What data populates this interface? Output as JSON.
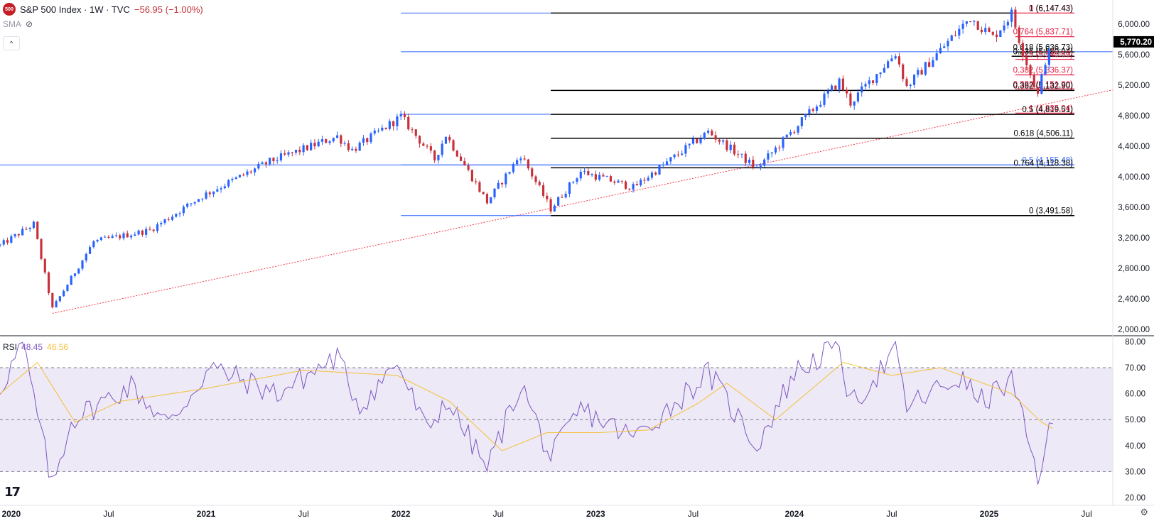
{
  "header": {
    "logo_text": "500",
    "title": "S&P 500 Index · 1W · TVC",
    "change": "−56.95 (−1.00%)",
    "indicator_label": "SMA",
    "collapse_glyph": "^"
  },
  "rsi_header": {
    "name": "RSI",
    "value": "48.45",
    "ma_value": "46.56"
  },
  "colors": {
    "up": "#2962ff",
    "down": "#c8303a",
    "rsi_line": "#7e57c2",
    "rsi_ma": "#f5c13a",
    "rsi_band": "#ede9f6",
    "fib_red": "#e91e43",
    "fib_black": "#000000",
    "trend": "#f23645",
    "fib_blue": "#2962ff"
  },
  "chart_data": [
    {
      "type": "candlestick",
      "title": "S&P 500 Index · 1W · TVC",
      "x_start": "2019-12-15",
      "x_end": "2025-08-24",
      "ylim": [
        2000,
        6300
      ],
      "y_ticks": [
        2000,
        2400,
        2800,
        3200,
        3600,
        4000,
        4400,
        4800,
        5200,
        5600,
        6000
      ],
      "y_tick_labels": [
        "2,000.00",
        "2,400.00",
        "2,800.00",
        "3,200.00",
        "3,600.00",
        "4,000.00",
        "4,400.00",
        "4,800.00",
        "5,200.00",
        "5,600.00",
        "6,000.00"
      ],
      "price_tag": {
        "value": 5770.2,
        "label": "5,770.20"
      },
      "anchors": [
        [
          "2019-12-15",
          3100
        ],
        [
          "2020-02-16",
          3380
        ],
        [
          "2020-03-22",
          2270
        ],
        [
          "2020-06-07",
          3150
        ],
        [
          "2020-09-20",
          3300
        ],
        [
          "2020-12-27",
          3750
        ],
        [
          "2021-05-02",
          4200
        ],
        [
          "2021-09-05",
          4530
        ],
        [
          "2021-10-03",
          4350
        ],
        [
          "2022-01-02",
          4790
        ],
        [
          "2022-03-06",
          4230
        ],
        [
          "2022-03-27",
          4550
        ],
        [
          "2022-06-12",
          3670
        ],
        [
          "2022-08-14",
          4290
        ],
        [
          "2022-10-09",
          3580
        ],
        [
          "2022-12-04",
          4070
        ],
        [
          "2023-03-12",
          3860
        ],
        [
          "2023-07-30",
          4590
        ],
        [
          "2023-10-29",
          4110
        ],
        [
          "2024-03-31",
          5250
        ],
        [
          "2024-04-21",
          4970
        ],
        [
          "2024-07-14",
          5620
        ],
        [
          "2024-08-04",
          5180
        ],
        [
          "2024-12-01",
          6090
        ],
        [
          "2025-01-12",
          5830
        ],
        [
          "2025-02-16",
          6140
        ],
        [
          "2025-03-09",
          5640
        ],
        [
          "2025-04-06",
          5070
        ],
        [
          "2025-04-20",
          5530
        ],
        [
          "2025-05-04",
          5690
        ]
      ],
      "fib_levels": [
        {
          "value": 6147.43,
          "label": "0 (6,147.43)",
          "text_color": "#e91e43",
          "line_color": "#e91e43",
          "x0": "2025-02-16",
          "x1": "2025-08-24"
        },
        {
          "value": 6147.43,
          "label": "1 (6,147.43)",
          "text_color": "#000000",
          "line_color": "#000000",
          "x0": "2022-10-09",
          "x1": "2025-02-16"
        },
        {
          "value": 5837.71,
          "label": "0.764 (5,837.71)",
          "text_color": "#e91e43",
          "line_color": "#e91e43",
          "x0": "2025-02-23",
          "x1": "2025-08-24"
        },
        {
          "value": 5636.73,
          "label": "0.618 (5,636.73)",
          "text_color": "#000000",
          "line_color": "#000000",
          "x0": "2025-02-23",
          "x1": "2025-08-24"
        },
        {
          "value": 5580.94,
          "label": "0.236 (5,580.94)",
          "text_color": "#000000",
          "line_color": "#000000",
          "x0": "2025-02-16",
          "x1": "2025-08-24"
        },
        {
          "value": 5540.69,
          "label": "0.5 (5,540.69)",
          "text_color": "#e91e43",
          "line_color": "#e91e43",
          "x0": "2025-02-23",
          "x1": "2025-08-24"
        },
        {
          "value": 5336.37,
          "label": "0.382 (5,336.37)",
          "text_color": "#e91e43",
          "line_color": "#e91e43",
          "x0": "2025-02-23",
          "x1": "2025-08-24"
        },
        {
          "value": 5151.9,
          "label": "0.382 (5,151.90)",
          "text_color": "#e91e43",
          "line_color": "#e91e43",
          "x0": "2025-02-23",
          "x1": "2025-08-24"
        },
        {
          "value": 5132.9,
          "label": "0.382 (5,132.90)",
          "text_color": "#000000",
          "line_color": "#000000",
          "x0": "2022-10-09",
          "x1": "2025-08-24"
        },
        {
          "value": 4835.04,
          "label": "1 (4,835.04)",
          "text_color": "#e91e43",
          "line_color": "#e91e43",
          "x0": "2025-02-23",
          "x1": "2025-08-24"
        },
        {
          "value": 4819.51,
          "label": "0.5 (4,819.51)",
          "text_color": "#000000",
          "line_color": "#000000",
          "x0": "2022-10-09",
          "x1": "2025-08-24"
        },
        {
          "value": 4506.11,
          "label": "0.618 (4,506.11)",
          "text_color": "#000000",
          "line_color": "#000000",
          "x0": "2022-10-09",
          "x1": "2025-08-24"
        },
        {
          "value": 4155.48,
          "label": "0.5 (4,155.48)",
          "text_color": "#2962ff",
          "line_color": "#2962ff",
          "x0": "2022-01-02",
          "x1": "2025-08-24"
        },
        {
          "value": 4118.38,
          "label": "0.764 (4,118.38)",
          "text_color": "#000000",
          "line_color": "#000000",
          "x0": "2022-10-09",
          "x1": "2025-08-24"
        },
        {
          "value": 3491.58,
          "label": "0 (3,491.58)",
          "text_color": "#000000",
          "line_color": "#000000",
          "x0": "2022-10-09",
          "x1": "2025-08-24"
        }
      ],
      "blue_lines": [
        {
          "value": 6147.43,
          "x0": "2022-01-02",
          "x1": "2022-10-09"
        },
        {
          "value": 5640,
          "x0": "2022-01-02",
          "x1": "2025-08-24"
        },
        {
          "value": 4820,
          "x0": "2022-01-02",
          "x1": "2022-10-09"
        },
        {
          "value": 4155.48,
          "x0": "2019-12-15",
          "x1": "2022-01-02"
        },
        {
          "value": 3491.58,
          "x0": "2022-01-02",
          "x1": "2022-10-09"
        }
      ],
      "trendline": {
        "from": [
          "2020-03-22",
          2210
        ],
        "to": [
          "2025-08-24",
          5140
        ]
      }
    },
    {
      "type": "line",
      "title": "RSI",
      "series": [
        {
          "name": "RSI",
          "value_label": "48.45"
        },
        {
          "name": "RSI MA",
          "value_label": "46.56"
        }
      ],
      "ylim": [
        17,
        82
      ],
      "y_ticks": [
        20,
        30,
        40,
        50,
        60,
        70,
        80
      ],
      "y_tick_labels": [
        "20.00",
        "30.00",
        "40.00",
        "50.00",
        "60.00",
        "70.00",
        "80.00"
      ],
      "band": [
        30,
        70
      ],
      "dashed_levels": [
        30,
        50,
        70
      ],
      "anchors": [
        [
          "2019-12-15",
          62
        ],
        [
          "2020-01-26",
          79
        ],
        [
          "2020-03-22",
          24
        ],
        [
          "2020-04-26",
          50
        ],
        [
          "2020-08-16",
          63
        ],
        [
          "2020-10-25",
          48
        ],
        [
          "2021-01-10",
          70
        ],
        [
          "2021-05-16",
          60
        ],
        [
          "2021-09-05",
          74
        ],
        [
          "2021-10-17",
          55
        ],
        [
          "2021-12-26",
          72
        ],
        [
          "2022-02-20",
          45
        ],
        [
          "2022-03-27",
          58
        ],
        [
          "2022-06-12",
          31
        ],
        [
          "2022-08-14",
          64
        ],
        [
          "2022-10-09",
          35
        ],
        [
          "2022-12-04",
          54
        ],
        [
          "2023-03-12",
          43
        ],
        [
          "2023-05-21",
          55
        ],
        [
          "2023-07-30",
          68
        ],
        [
          "2023-10-29",
          40
        ],
        [
          "2024-01-07",
          68
        ],
        [
          "2024-03-31",
          79
        ],
        [
          "2024-04-21",
          55
        ],
        [
          "2024-07-14",
          76
        ],
        [
          "2024-08-04",
          55
        ],
        [
          "2024-11-10",
          66
        ],
        [
          "2024-12-22",
          57
        ],
        [
          "2025-02-16",
          65
        ],
        [
          "2025-03-23",
          38
        ],
        [
          "2025-04-06",
          28
        ],
        [
          "2025-04-20",
          40
        ],
        [
          "2025-05-04",
          48.45
        ]
      ],
      "ma_anchors": [
        [
          "2019-12-15",
          60
        ],
        [
          "2020-02-23",
          72
        ],
        [
          "2020-05-03",
          49
        ],
        [
          "2020-07-26",
          57
        ],
        [
          "2021-01-03",
          62
        ],
        [
          "2021-07-04",
          69
        ],
        [
          "2021-12-26",
          67
        ],
        [
          "2022-04-03",
          57
        ],
        [
          "2022-07-10",
          38
        ],
        [
          "2022-10-02",
          45
        ],
        [
          "2023-01-08",
          45
        ],
        [
          "2023-04-09",
          46
        ],
        [
          "2023-07-09",
          56
        ],
        [
          "2023-09-03",
          64
        ],
        [
          "2023-12-03",
          50
        ],
        [
          "2024-04-07",
          72
        ],
        [
          "2024-07-07",
          67
        ],
        [
          "2024-10-06",
          70
        ],
        [
          "2025-02-16",
          60
        ],
        [
          "2025-04-13",
          49
        ],
        [
          "2025-05-04",
          46.56
        ]
      ]
    }
  ],
  "x_axis": {
    "ticks": [
      {
        "date": "2020-01-05",
        "label": "2020",
        "bold": true
      },
      {
        "date": "2020-07-05",
        "label": "Jul",
        "bold": false
      },
      {
        "date": "2021-01-03",
        "label": "2021",
        "bold": true
      },
      {
        "date": "2021-07-04",
        "label": "Jul",
        "bold": false
      },
      {
        "date": "2022-01-02",
        "label": "2022",
        "bold": true
      },
      {
        "date": "2022-07-03",
        "label": "Jul",
        "bold": false
      },
      {
        "date": "2023-01-01",
        "label": "2023",
        "bold": true
      },
      {
        "date": "2023-07-02",
        "label": "Jul",
        "bold": false
      },
      {
        "date": "2024-01-07",
        "label": "2024",
        "bold": true
      },
      {
        "date": "2024-07-07",
        "label": "Jul",
        "bold": false
      },
      {
        "date": "2025-01-05",
        "label": "2025",
        "bold": true
      },
      {
        "date": "2025-07-06",
        "label": "Jul",
        "bold": false
      }
    ]
  },
  "footer": {
    "brand": "17"
  }
}
